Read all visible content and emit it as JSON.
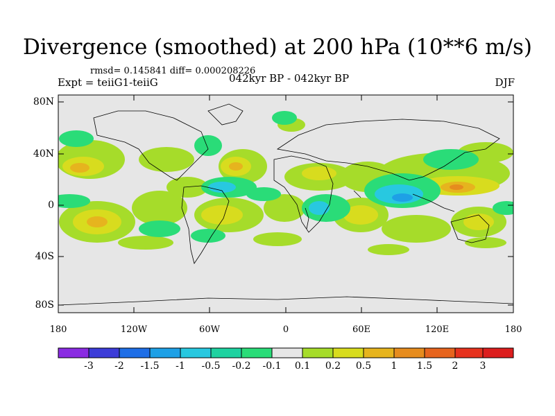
{
  "title": "Divergence (smoothed) at 200 hPa (10**6 m/s)",
  "stats": "rmsd= 0.145841 diff= 0.000208226",
  "left_label": "Expt = teiiG1-teiiG",
  "center_label": "042kyr BP - 042kyr BP",
  "right_label": "DJF",
  "lat_labels": [
    "80N",
    "40N",
    "0",
    "40S",
    "80S"
  ],
  "lon_labels": [
    "180",
    "120W",
    "60W",
    "0",
    "60E",
    "120E",
    "180"
  ],
  "colorbar": {
    "labels": [
      "-3",
      "-2",
      "-1.5",
      "-1",
      "-0.5",
      "-0.2",
      "-0.1",
      "0.1",
      "0.2",
      "0.5",
      "1",
      "1.5",
      "2",
      "3"
    ],
    "colors": [
      "#8a2be2",
      "#3c3cd8",
      "#1e6ee6",
      "#1ea0e6",
      "#28c8e0",
      "#1ed2a0",
      "#2adc78",
      "#e6e6e6",
      "#a6dc2a",
      "#d8dc1e",
      "#e6b41e",
      "#e68c1e",
      "#e6641e",
      "#e6321e",
      "#dc1e1e"
    ]
  },
  "field_colors": {
    "background": "#e6e6e6",
    "pos_weak": "#a6dc2a",
    "pos_mid": "#d8dc1e",
    "pos_strong": "#e6b41e",
    "pos_stronger": "#e68c1e",
    "neg_weak": "#2adc78",
    "neg_mid": "#28c8e0",
    "neg_strong": "#1ea0e6"
  }
}
